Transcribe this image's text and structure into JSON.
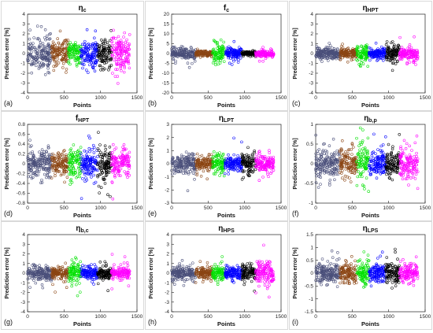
{
  "figure": {
    "series_colors": [
      "#4a4f7a",
      "#8b4513",
      "#00e000",
      "#0000ff",
      "#000000",
      "#ff00ff"
    ]
  },
  "chart_data": [
    {
      "type": "scatter",
      "title_main": "η",
      "title_sub": "c",
      "panel_label": "(a)",
      "xlabel": "Points",
      "ylabel": "Prediction error [%]",
      "xlim": [
        0,
        1500
      ],
      "ylim": [
        -4,
        4
      ],
      "xticks": [
        0,
        500,
        1000,
        1500
      ],
      "yticks": [
        -4,
        -3,
        -2,
        -1,
        0,
        1,
        2,
        3,
        4
      ],
      "grid": false,
      "x_ranges": [
        [
          0,
          330
        ],
        [
          330,
          560
        ],
        [
          560,
          730
        ],
        [
          730,
          960
        ],
        [
          960,
          1150
        ],
        [
          1150,
          1400
        ]
      ],
      "spread": [
        2.2,
        1.8,
        1.5,
        1.7,
        2.0,
        2.3
      ]
    },
    {
      "type": "scatter",
      "title_main": "f",
      "title_sub": "c",
      "panel_label": "(b)",
      "xlabel": "Points",
      "ylabel": "Prediction error [%]",
      "xlim": [
        0,
        1500
      ],
      "ylim": [
        -20,
        20
      ],
      "xticks": [
        0,
        500,
        1000,
        1500
      ],
      "yticks": [
        -20,
        -15,
        -10,
        -5,
        0,
        5,
        10,
        15,
        20
      ],
      "grid": false,
      "x_ranges": [
        [
          0,
          330
        ],
        [
          330,
          560
        ],
        [
          560,
          730
        ],
        [
          730,
          960
        ],
        [
          960,
          1150
        ],
        [
          1150,
          1400
        ]
      ],
      "spread": [
        3.0,
        2.0,
        7.0,
        4.0,
        1.5,
        2.5
      ]
    },
    {
      "type": "scatter",
      "title_main": "η",
      "title_sub": "HPT",
      "panel_label": "(c)",
      "xlabel": "Points",
      "ylabel": "Prediction error [%]",
      "xlim": [
        0,
        1500
      ],
      "ylim": [
        -4,
        4
      ],
      "xticks": [
        0,
        500,
        1000,
        1500
      ],
      "yticks": [
        -4,
        -3,
        -2,
        -1,
        0,
        1,
        2,
        3,
        4
      ],
      "grid": false,
      "x_ranges": [
        [
          0,
          330
        ],
        [
          330,
          560
        ],
        [
          560,
          730
        ],
        [
          730,
          960
        ],
        [
          960,
          1150
        ],
        [
          1150,
          1400
        ]
      ],
      "spread": [
        0.8,
        0.7,
        1.2,
        0.8,
        1.2,
        0.9
      ]
    },
    {
      "type": "scatter",
      "title_main": "f",
      "title_sub": "HPT",
      "panel_label": "(d)",
      "xlabel": "Points",
      "ylabel": "Prediction error [%]",
      "xlim": [
        0,
        1500
      ],
      "ylim": [
        -0.8,
        0.8
      ],
      "xticks": [
        0,
        500,
        1000,
        1500
      ],
      "yticks": [
        -0.8,
        -0.6,
        -0.4,
        -0.2,
        0,
        0.2,
        0.4,
        0.6,
        0.8
      ],
      "grid": false,
      "x_ranges": [
        [
          0,
          330
        ],
        [
          330,
          560
        ],
        [
          560,
          730
        ],
        [
          730,
          960
        ],
        [
          960,
          1150
        ],
        [
          1150,
          1400
        ]
      ],
      "spread": [
        0.35,
        0.3,
        0.5,
        0.35,
        0.45,
        0.4
      ]
    },
    {
      "type": "scatter",
      "title_main": "η",
      "title_sub": "LPT",
      "panel_label": "(e)",
      "xlabel": "Points",
      "ylabel": "Prediction error [%]",
      "xlim": [
        0,
        1500
      ],
      "ylim": [
        -3,
        3
      ],
      "xticks": [
        0,
        500,
        1000,
        1500
      ],
      "yticks": [
        -3,
        -2,
        -1,
        0,
        1,
        2,
        3
      ],
      "grid": false,
      "x_ranges": [
        [
          0,
          330
        ],
        [
          330,
          560
        ],
        [
          560,
          730
        ],
        [
          730,
          960
        ],
        [
          960,
          1150
        ],
        [
          1150,
          1400
        ]
      ],
      "spread": [
        0.9,
        0.7,
        1.2,
        0.8,
        1.0,
        0.9
      ]
    },
    {
      "type": "scatter",
      "title_main": "η",
      "title_sub": "b,p",
      "panel_label": "(f)",
      "xlabel": "Points",
      "ylabel": "Prediction error [%]",
      "xlim": [
        0,
        1500
      ],
      "ylim": [
        -1,
        1
      ],
      "xticks": [
        0,
        500,
        1000,
        1500
      ],
      "yticks": [
        -1,
        -0.5,
        0,
        0.5,
        1
      ],
      "grid": false,
      "x_ranges": [
        [
          0,
          330
        ],
        [
          330,
          560
        ],
        [
          560,
          730
        ],
        [
          730,
          960
        ],
        [
          960,
          1150
        ],
        [
          1150,
          1400
        ]
      ],
      "spread": [
        0.5,
        0.45,
        0.6,
        0.4,
        0.45,
        0.5
      ]
    },
    {
      "type": "scatter",
      "title_main": "η",
      "title_sub": "b,c",
      "panel_label": "(g)",
      "xlabel": "Points",
      "ylabel": "Prediction error [%]",
      "xlim": [
        0,
        1500
      ],
      "ylim": [
        -4,
        4
      ],
      "xticks": [
        0,
        500,
        1000,
        1500
      ],
      "yticks": [
        -4,
        -3,
        -2,
        -1,
        0,
        1,
        2,
        3,
        4
      ],
      "grid": false,
      "x_ranges": [
        [
          0,
          330
        ],
        [
          330,
          560
        ],
        [
          560,
          730
        ],
        [
          730,
          960
        ],
        [
          960,
          1150
        ],
        [
          1150,
          1400
        ]
      ],
      "spread": [
        1.0,
        0.8,
        1.6,
        0.9,
        0.9,
        0.9
      ]
    },
    {
      "type": "scatter",
      "title_main": "η",
      "title_sub": "HPS",
      "panel_label": "(h)",
      "xlabel": "Points",
      "ylabel": "Prediction error [%]",
      "xlim": [
        0,
        1500
      ],
      "ylim": [
        -4,
        4
      ],
      "xticks": [
        0,
        500,
        1000,
        1500
      ],
      "yticks": [
        -4,
        -3,
        -2,
        -1,
        0,
        1,
        2,
        3,
        4
      ],
      "grid": false,
      "x_ranges": [
        [
          0,
          330
        ],
        [
          330,
          560
        ],
        [
          560,
          730
        ],
        [
          730,
          960
        ],
        [
          960,
          1150
        ],
        [
          1150,
          1400
        ]
      ],
      "spread": [
        1.0,
        0.8,
        1.2,
        0.9,
        1.2,
        1.6
      ]
    },
    {
      "type": "scatter",
      "title_main": "η",
      "title_sub": "LPS",
      "panel_label": "(i)",
      "xlabel": "Points",
      "ylabel": "Prediction error [%]",
      "xlim": [
        0,
        1500
      ],
      "ylim": [
        -1.5,
        1.5
      ],
      "xticks": [
        0,
        500,
        1000,
        1500
      ],
      "yticks": [
        -1.5,
        -1,
        -0.5,
        0,
        0.5,
        1,
        1.5
      ],
      "grid": false,
      "x_ranges": [
        [
          0,
          330
        ],
        [
          330,
          560
        ],
        [
          560,
          730
        ],
        [
          730,
          960
        ],
        [
          960,
          1150
        ],
        [
          1150,
          1400
        ]
      ],
      "spread": [
        0.55,
        0.5,
        0.6,
        0.5,
        0.55,
        0.45
      ]
    }
  ]
}
